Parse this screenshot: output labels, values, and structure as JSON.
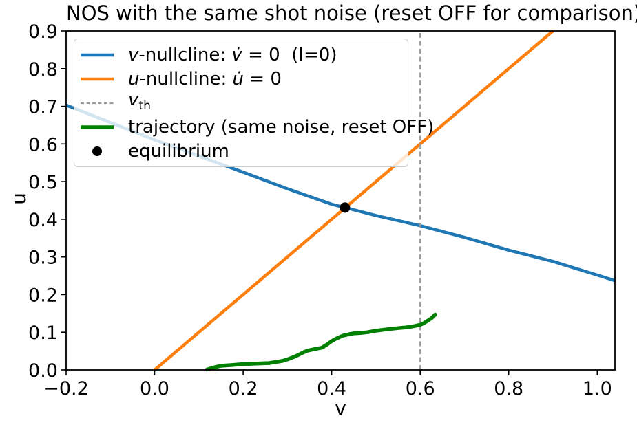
{
  "chart_data": {
    "type": "line",
    "title": "NOS with the same shot noise (reset OFF for comparison)",
    "xlabel": "v",
    "ylabel": "u",
    "xlim": [
      -0.2,
      1.04
    ],
    "ylim": [
      0.0,
      0.9
    ],
    "grid": false,
    "legend_position": "upper left",
    "x_ticks": {
      "values": [
        -0.2,
        0.0,
        0.2,
        0.4,
        0.6,
        0.8,
        1.0
      ],
      "labels": [
        "−0.2",
        "0.0",
        "0.2",
        "0.4",
        "0.6",
        "0.8",
        "1.0"
      ]
    },
    "y_ticks": {
      "values": [
        0.0,
        0.1,
        0.2,
        0.3,
        0.4,
        0.5,
        0.6,
        0.7,
        0.8,
        0.9
      ],
      "labels": [
        "0.0",
        "0.1",
        "0.2",
        "0.3",
        "0.4",
        "0.5",
        "0.6",
        "0.7",
        "0.8",
        "0.9"
      ]
    },
    "series": [
      {
        "id": "v-nullcline",
        "name": "v-nullcline: v̇ = 0 (I=0)",
        "color": "#1f77b4",
        "width": 4.5,
        "dash": null,
        "points": [
          [
            -0.2,
            0.703
          ],
          [
            -0.1,
            0.657
          ],
          [
            0.0,
            0.611
          ],
          [
            0.1,
            0.568
          ],
          [
            0.2,
            0.525
          ],
          [
            0.3,
            0.481
          ],
          [
            0.4,
            0.44
          ],
          [
            0.43,
            0.431
          ],
          [
            0.5,
            0.41
          ],
          [
            0.6,
            0.383
          ],
          [
            0.7,
            0.352
          ],
          [
            0.8,
            0.318
          ],
          [
            0.9,
            0.288
          ],
          [
            1.0,
            0.252
          ],
          [
            1.04,
            0.237
          ]
        ]
      },
      {
        "id": "u-nullcline",
        "name": "u-nullcline: u̇ = 0",
        "color": "#ff7f0e",
        "width": 4.5,
        "dash": null,
        "points": [
          [
            0.0,
            0.0
          ],
          [
            0.9,
            0.9
          ]
        ]
      },
      {
        "id": "v-th",
        "name": "v_th",
        "color": "#999999",
        "width": 2.2,
        "dash": [
          7,
          4.5
        ],
        "points": [
          [
            0.6,
            0.0
          ],
          [
            0.6,
            0.9
          ]
        ]
      },
      {
        "id": "trajectory",
        "name": "trajectory (same noise, reset OFF)",
        "color": "#008000",
        "width": 5.5,
        "dash": null,
        "points": [
          [
            0.118,
            0.001
          ],
          [
            0.135,
            0.007
          ],
          [
            0.15,
            0.011
          ],
          [
            0.175,
            0.013
          ],
          [
            0.196,
            0.015
          ],
          [
            0.23,
            0.017
          ],
          [
            0.258,
            0.018
          ],
          [
            0.289,
            0.024
          ],
          [
            0.305,
            0.03
          ],
          [
            0.32,
            0.037
          ],
          [
            0.335,
            0.046
          ],
          [
            0.345,
            0.051
          ],
          [
            0.36,
            0.055
          ],
          [
            0.378,
            0.059
          ],
          [
            0.39,
            0.068
          ],
          [
            0.398,
            0.075
          ],
          [
            0.41,
            0.083
          ],
          [
            0.425,
            0.091
          ],
          [
            0.44,
            0.095
          ],
          [
            0.449,
            0.097
          ],
          [
            0.465,
            0.098
          ],
          [
            0.481,
            0.1
          ],
          [
            0.5,
            0.104
          ],
          [
            0.527,
            0.108
          ],
          [
            0.55,
            0.111
          ],
          [
            0.569,
            0.113
          ],
          [
            0.585,
            0.116
          ],
          [
            0.6,
            0.12
          ],
          [
            0.608,
            0.124
          ],
          [
            0.616,
            0.13
          ],
          [
            0.625,
            0.137
          ],
          [
            0.634,
            0.147
          ]
        ]
      }
    ],
    "markers": [
      {
        "id": "equilibrium",
        "name": "equilibrium",
        "color": "#000000",
        "point": [
          0.43,
          0.431
        ],
        "radius": 7.5
      }
    ]
  },
  "legend": {
    "items": [
      {
        "id": "v-nullcline",
        "sample": {
          "kind": "line",
          "color": "#1f77b4",
          "width": 4.5,
          "dash": null
        },
        "label_parts": [
          {
            "t": "v",
            "i": true
          },
          {
            "t": "-nullcline: "
          },
          {
            "t": "v̇",
            "i": true
          },
          {
            "t": " = 0  (I=0)"
          }
        ]
      },
      {
        "id": "u-nullcline",
        "sample": {
          "kind": "line",
          "color": "#ff7f0e",
          "width": 4.5,
          "dash": null
        },
        "label_parts": [
          {
            "t": "u",
            "i": true
          },
          {
            "t": "-nullcline: "
          },
          {
            "t": "u̇",
            "i": true
          },
          {
            "t": " = 0"
          }
        ]
      },
      {
        "id": "v-th",
        "sample": {
          "kind": "line",
          "color": "#999999",
          "width": 2.2,
          "dash": [
            5,
            3.5
          ]
        },
        "label_parts": [
          {
            "t": "v",
            "i": true
          },
          {
            "t": "th",
            "sub": true
          }
        ]
      },
      {
        "id": "trajectory",
        "sample": {
          "kind": "line",
          "color": "#008000",
          "width": 5.5,
          "dash": null
        },
        "label_parts": [
          {
            "t": "trajectory (same noise, reset OFF)"
          }
        ]
      },
      {
        "id": "equilibrium",
        "sample": {
          "kind": "marker",
          "color": "#000000",
          "radius": 7
        },
        "label_parts": [
          {
            "t": "equilibrium"
          }
        ]
      }
    ]
  },
  "axes": {
    "spine_color": "#000000",
    "tick_color": "#000000",
    "background": "#ffffff"
  }
}
